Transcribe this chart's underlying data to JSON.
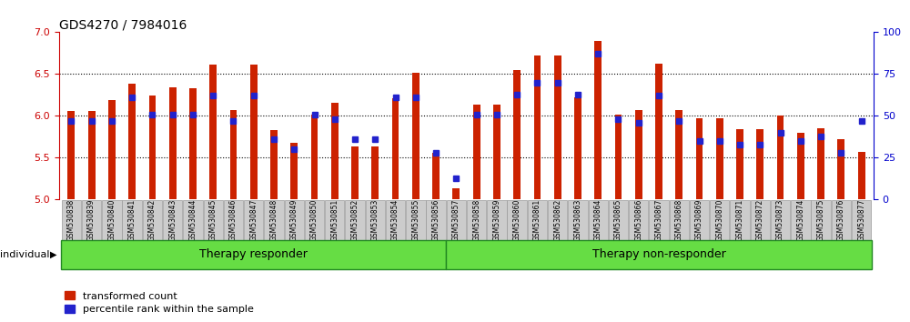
{
  "title": "GDS4270 / 7984016",
  "samples": [
    "GSM530838",
    "GSM530839",
    "GSM530840",
    "GSM530841",
    "GSM530842",
    "GSM530843",
    "GSM530844",
    "GSM530845",
    "GSM530846",
    "GSM530847",
    "GSM530848",
    "GSM530849",
    "GSM530850",
    "GSM530851",
    "GSM530852",
    "GSM530853",
    "GSM530854",
    "GSM530855",
    "GSM530856",
    "GSM530857",
    "GSM530858",
    "GSM530859",
    "GSM530860",
    "GSM530861",
    "GSM530862",
    "GSM530863",
    "GSM530864",
    "GSM530865",
    "GSM530866",
    "GSM530867",
    "GSM530868",
    "GSM530869",
    "GSM530870",
    "GSM530871",
    "GSM530872",
    "GSM530873",
    "GSM530874",
    "GSM530875",
    "GSM530876",
    "GSM530877"
  ],
  "transformed_count": [
    6.06,
    6.06,
    6.19,
    6.39,
    6.24,
    6.34,
    6.33,
    6.61,
    6.07,
    6.61,
    5.83,
    5.68,
    6.02,
    6.16,
    5.63,
    5.63,
    6.21,
    6.51,
    5.56,
    5.14,
    6.13,
    6.13,
    6.55,
    6.72,
    6.72,
    6.22,
    6.9,
    6.02,
    6.07,
    6.62,
    6.07,
    5.97,
    5.97,
    5.84,
    5.84,
    6.0,
    5.8,
    5.85,
    5.72,
    5.57
  ],
  "percentile_rank": [
    47,
    47,
    47,
    61,
    51,
    51,
    51,
    62,
    47,
    62,
    36,
    30,
    51,
    48,
    36,
    36,
    61,
    61,
    28,
    13,
    51,
    51,
    63,
    70,
    70,
    63,
    87,
    48,
    46,
    62,
    47,
    35,
    35,
    33,
    33,
    40,
    35,
    38,
    28,
    47
  ],
  "groups": [
    {
      "name": "Therapy responder",
      "start": 0,
      "end": 19
    },
    {
      "name": "Therapy non-responder",
      "start": 19,
      "end": 40
    }
  ],
  "ylim_left": [
    5.0,
    7.0
  ],
  "ylim_right": [
    0,
    100
  ],
  "bar_color": "#CC2200",
  "dot_color": "#2222CC",
  "left_tick_color": "#CC0000",
  "right_tick_color": "#0000CC",
  "group_color": "#66DD44",
  "group_border_color": "#228822",
  "xtick_bg": "#CCCCCC",
  "xtick_border": "#999999"
}
